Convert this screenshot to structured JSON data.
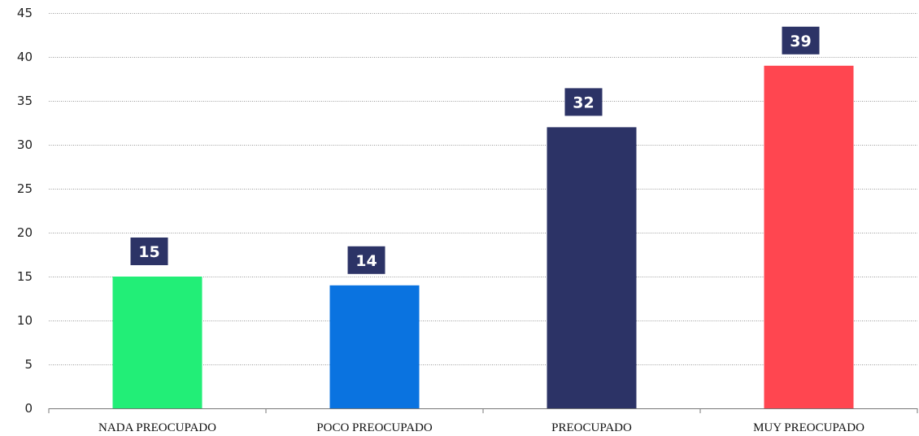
{
  "chart_data": {
    "type": "bar",
    "categories": [
      "NADA PREOCUPADO",
      "POCO PREOCUPADO",
      "PREOCUPADO",
      "MUY PREOCUPADO"
    ],
    "values": [
      15,
      14,
      32,
      39
    ],
    "colors": [
      "#22ee77",
      "#0a73e0",
      "#2c3366",
      "#ff4650"
    ],
    "label_bg": "#2c3366",
    "title": "",
    "xlabel": "",
    "ylabel": "",
    "ylim": [
      0,
      45
    ],
    "yticks": [
      0,
      5,
      10,
      15,
      20,
      25,
      30,
      35,
      40,
      45
    ],
    "grid": true,
    "legend": "none"
  }
}
